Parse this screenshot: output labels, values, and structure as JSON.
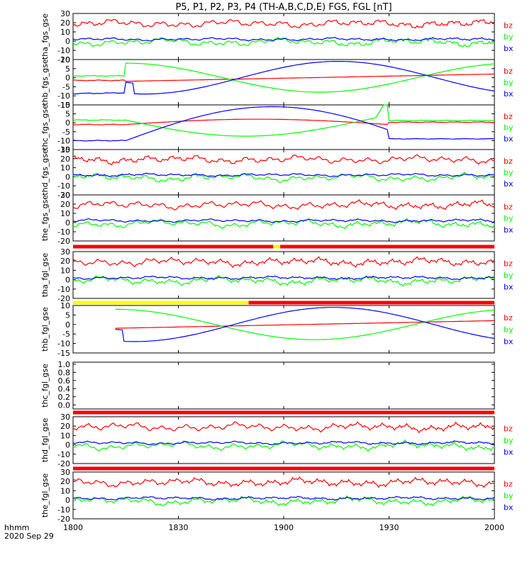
{
  "title": "P5, P1, P2, P3, P4 (TH-A,B,C,D,E) FGS, FGL [nT]",
  "time_label": "hhmm",
  "date_label": "2020 Sep 29",
  "x_ticks": [
    "1800",
    "1830",
    "1900",
    "1930",
    "2000"
  ],
  "colors": {
    "bx": "#0000ff",
    "by": "#00ff00",
    "bz": "#ff0000",
    "bar_red": "#ff0000",
    "bar_yellow": "#ffff00"
  },
  "chart_data": [
    {
      "type": "line",
      "ylabel": "tha_fgs_gse",
      "ylim": [
        -20,
        30
      ],
      "yticks": [
        "-20",
        "-10",
        "0",
        "10",
        "20",
        "30"
      ],
      "x_range": [
        "18:00",
        "20:00"
      ],
      "series": [
        {
          "name": "bz",
          "pattern": "noisy",
          "center": 19
        },
        {
          "name": "by",
          "pattern": "noisy",
          "center": -2
        },
        {
          "name": "bx",
          "pattern": "noisy",
          "center": 2
        }
      ]
    },
    {
      "type": "line",
      "ylabel": "thb_fgs_gse",
      "ylim": [
        -15,
        10
      ],
      "yticks": [
        "-15",
        "-10",
        "-5",
        "0",
        "5",
        "10"
      ],
      "x_range": [
        "18:00",
        "20:00"
      ],
      "series": [
        {
          "name": "bz",
          "pattern": "thb",
          "center": -1
        },
        {
          "name": "by",
          "pattern": "thb",
          "center": 1
        },
        {
          "name": "bx",
          "pattern": "thb",
          "center": -10
        }
      ]
    },
    {
      "type": "line",
      "ylabel": "thc_fgs_gse",
      "ylim": [
        -15,
        10
      ],
      "yticks": [
        "-15",
        "-10",
        "-5",
        "0",
        "5",
        "10"
      ],
      "x_range": [
        "18:00",
        "20:00"
      ],
      "series": [
        {
          "name": "bz",
          "pattern": "thc",
          "center": -1
        },
        {
          "name": "by",
          "pattern": "thc",
          "center": 1
        },
        {
          "name": "bx",
          "pattern": "thc",
          "center": -10
        }
      ]
    },
    {
      "type": "line",
      "ylabel": "thd_fgs_gse",
      "ylim": [
        -20,
        30
      ],
      "yticks": [
        "-20",
        "-10",
        "0",
        "10",
        "20",
        "30"
      ],
      "x_range": [
        "18:00",
        "20:00"
      ],
      "series": [
        {
          "name": "bz",
          "pattern": "noisy",
          "center": 19
        },
        {
          "name": "by",
          "pattern": "noisy",
          "center": -2
        },
        {
          "name": "bx",
          "pattern": "noisy",
          "center": 2
        }
      ]
    },
    {
      "type": "line",
      "ylabel": "the_fgs_gse",
      "ylim": [
        -20,
        30
      ],
      "yticks": [
        "-20",
        "-10",
        "0",
        "10",
        "20",
        "30"
      ],
      "x_range": [
        "18:00",
        "20:00"
      ],
      "series": [
        {
          "name": "bz",
          "pattern": "noisy",
          "center": 19
        },
        {
          "name": "by",
          "pattern": "noisy",
          "center": -2
        },
        {
          "name": "bx",
          "pattern": "noisy",
          "center": 2
        }
      ]
    },
    {
      "type": "line",
      "ylabel": "tha_fgl_gse",
      "ylim": [
        -20,
        30
      ],
      "yticks": [
        "-20",
        "-10",
        "0",
        "10",
        "20",
        "30"
      ],
      "x_range": [
        "18:00",
        "20:00"
      ],
      "mode_bar": [
        {
          "from": "18:00",
          "to": "18:57",
          "color": "red"
        },
        {
          "from": "18:57",
          "to": "18:59",
          "color": "yellow"
        },
        {
          "from": "18:59",
          "to": "20:00",
          "color": "red"
        }
      ],
      "series": [
        {
          "name": "bz",
          "pattern": "noisy",
          "center": 19
        },
        {
          "name": "by",
          "pattern": "noisy",
          "center": -2
        },
        {
          "name": "bx",
          "pattern": "noisy",
          "center": 2
        }
      ]
    },
    {
      "type": "line",
      "ylabel": "thb_fgl_gse",
      "ylim": [
        -15,
        10
      ],
      "yticks": [
        "-15",
        "-10",
        "-5",
        "0",
        "5",
        "10"
      ],
      "x_range": [
        "18:00",
        "20:00"
      ],
      "mode_bar": [
        {
          "from": "18:00",
          "to": "18:50",
          "color": "yellow"
        },
        {
          "from": "18:50",
          "to": "20:00",
          "color": "red"
        }
      ],
      "series": [
        {
          "name": "bz",
          "pattern": "thb_fgl",
          "center": -1
        },
        {
          "name": "by",
          "pattern": "thb_fgl",
          "center": 1
        },
        {
          "name": "bx",
          "pattern": "thb_fgl",
          "center": -10
        }
      ]
    },
    {
      "type": "line",
      "ylabel": "thc_fgl_gse",
      "ylim": [
        -0.1,
        1.05
      ],
      "yticks": [
        "0.0",
        "0.2",
        "0.4",
        "0.6",
        "0.8",
        "1.0"
      ],
      "x_range": [
        "18:00",
        "20:00"
      ],
      "series": []
    },
    {
      "type": "line",
      "ylabel": "thd_fgl_gse",
      "ylim": [
        -20,
        30
      ],
      "yticks": [
        "-20",
        "-10",
        "0",
        "10",
        "20",
        "30"
      ],
      "x_range": [
        "18:00",
        "20:00"
      ],
      "mode_bar": [
        {
          "from": "18:00",
          "to": "20:00",
          "color": "red"
        }
      ],
      "series": [
        {
          "name": "bz",
          "pattern": "noisy",
          "center": 19
        },
        {
          "name": "by",
          "pattern": "noisy",
          "center": -2
        },
        {
          "name": "bx",
          "pattern": "noisy",
          "center": 2
        }
      ]
    },
    {
      "type": "line",
      "ylabel": "the_fgl_gse",
      "ylim": [
        -20,
        30
      ],
      "yticks": [
        "-20",
        "-10",
        "0",
        "10",
        "20",
        "30"
      ],
      "x_range": [
        "18:00",
        "20:00"
      ],
      "mode_bar": [
        {
          "from": "18:00",
          "to": "20:00",
          "color": "red"
        }
      ],
      "series": [
        {
          "name": "bz",
          "pattern": "noisy",
          "center": 19
        },
        {
          "name": "by",
          "pattern": "noisy",
          "center": -2
        },
        {
          "name": "bx",
          "pattern": "noisy",
          "center": 2
        }
      ]
    }
  ]
}
